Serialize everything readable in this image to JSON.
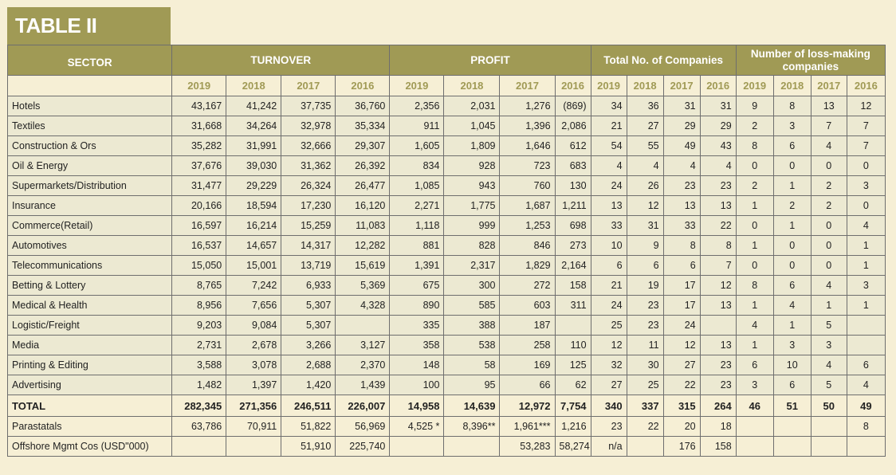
{
  "title": "TABLE II",
  "headers": {
    "sector": "SECTOR",
    "turnover": "TURNOVER",
    "profit": "PROFIT",
    "companies": "Total No. of Companies",
    "loss_making": "Number of loss-making companies"
  },
  "years": [
    "2019",
    "2018",
    "2017",
    "2016",
    "2019",
    "2018",
    "2017",
    "2016",
    "2019",
    "2018",
    "2017",
    "2016",
    "2019",
    "2018",
    "2017",
    "2016"
  ],
  "rows": [
    {
      "sector": "Hotels",
      "turnover": [
        "43,167",
        "41,242",
        "37,735",
        "36,760"
      ],
      "profit": [
        "2,356",
        "2,031",
        "1,276",
        "(869)"
      ],
      "companies": [
        "34",
        "36",
        "31",
        "31"
      ],
      "loss": [
        "9",
        "8",
        "13",
        "12"
      ]
    },
    {
      "sector": "Textiles",
      "turnover": [
        "31,668",
        "34,264",
        "32,978",
        "35,334"
      ],
      "profit": [
        "911",
        "1,045",
        "1,396",
        "2,086"
      ],
      "companies": [
        "21",
        "27",
        "29",
        "29"
      ],
      "loss": [
        "2",
        "3",
        "7",
        "7"
      ]
    },
    {
      "sector": "Construction & Ors",
      "turnover": [
        "35,282",
        "31,991",
        "32,666",
        "29,307"
      ],
      "profit": [
        "1,605",
        "1,809",
        "1,646",
        "612"
      ],
      "companies": [
        "54",
        "55",
        "49",
        "43"
      ],
      "loss": [
        "8",
        "6",
        "4",
        "7"
      ]
    },
    {
      "sector": "Oil & Energy",
      "turnover": [
        "37,676",
        "39,030",
        "31,362",
        "26,392"
      ],
      "profit": [
        "834",
        "928",
        "723",
        "683"
      ],
      "companies": [
        "4",
        "4",
        "4",
        "4"
      ],
      "loss": [
        "0",
        "0",
        "0",
        "0"
      ]
    },
    {
      "sector": "Supermarkets/Distribution",
      "turnover": [
        "31,477",
        "29,229",
        "26,324",
        "26,477"
      ],
      "profit": [
        "1,085",
        "943",
        "760",
        "130"
      ],
      "companies": [
        "24",
        "26",
        "23",
        "23"
      ],
      "loss": [
        "2",
        "1",
        "2",
        "3"
      ]
    },
    {
      "sector": "Insurance",
      "turnover": [
        "20,166",
        "18,594",
        "17,230",
        "16,120"
      ],
      "profit": [
        "2,271",
        "1,775",
        "1,687",
        "1,211"
      ],
      "companies": [
        "13",
        "12",
        "13",
        "13"
      ],
      "loss": [
        "1",
        "2",
        "2",
        "0"
      ]
    },
    {
      "sector": "Commerce(Retail)",
      "turnover": [
        "16,597",
        "16,214",
        "15,259",
        "11,083"
      ],
      "profit": [
        "1,118",
        "999",
        "1,253",
        "698"
      ],
      "companies": [
        "33",
        "31",
        "33",
        "22"
      ],
      "loss": [
        "0",
        "1",
        "0",
        "4"
      ]
    },
    {
      "sector": "Automotives",
      "turnover": [
        "16,537",
        "14,657",
        "14,317",
        "12,282"
      ],
      "profit": [
        "881",
        "828",
        "846",
        "273"
      ],
      "companies": [
        "10",
        "9",
        "8",
        "8"
      ],
      "loss": [
        "1",
        "0",
        "0",
        "1"
      ]
    },
    {
      "sector": "Telecommunications",
      "turnover": [
        "15,050",
        "15,001",
        "13,719",
        "15,619"
      ],
      "profit": [
        "1,391",
        "2,317",
        "1,829",
        "2,164"
      ],
      "companies": [
        "6",
        "6",
        "6",
        "7"
      ],
      "loss": [
        "0",
        "0",
        "0",
        "1"
      ]
    },
    {
      "sector": "Betting & Lottery",
      "turnover": [
        "8,765",
        "7,242",
        "6,933",
        "5,369"
      ],
      "profit": [
        "675",
        "300",
        "272",
        "158"
      ],
      "companies": [
        "21",
        "19",
        "17",
        "12"
      ],
      "loss": [
        "8",
        "6",
        "4",
        "3"
      ]
    },
    {
      "sector": "Medical & Health",
      "turnover": [
        "8,956",
        "7,656",
        "5,307",
        "4,328"
      ],
      "profit": [
        "890",
        "585",
        "603",
        "311"
      ],
      "companies": [
        "24",
        "23",
        "17",
        "13"
      ],
      "loss": [
        "1",
        "4",
        "1",
        "1"
      ]
    },
    {
      "sector": "Logistic/Freight",
      "turnover": [
        "9,203",
        "9,084",
        "5,307",
        ""
      ],
      "profit": [
        "335",
        "388",
        "187",
        ""
      ],
      "companies": [
        "25",
        "23",
        "24",
        ""
      ],
      "loss": [
        "4",
        "1",
        "5",
        ""
      ]
    },
    {
      "sector": "Media",
      "turnover": [
        "2,731",
        "2,678",
        "3,266",
        "3,127"
      ],
      "profit": [
        "358",
        "538",
        "258",
        "110"
      ],
      "companies": [
        "12",
        "11",
        "12",
        "13"
      ],
      "loss": [
        "1",
        "3",
        "3",
        ""
      ]
    },
    {
      "sector": "Printing & Editing",
      "turnover": [
        "3,588",
        "3,078",
        "2,688",
        "2,370"
      ],
      "profit": [
        "148",
        "58",
        "169",
        "125"
      ],
      "companies": [
        "32",
        "30",
        "27",
        "23"
      ],
      "loss": [
        "6",
        "10",
        "4",
        "6"
      ]
    },
    {
      "sector": "Advertising",
      "turnover": [
        "1,482",
        "1,397",
        "1,420",
        "1,439"
      ],
      "profit": [
        "100",
        "95",
        "66",
        "62"
      ],
      "companies": [
        "27",
        "25",
        "22",
        "23"
      ],
      "loss": [
        "3",
        "6",
        "5",
        "4"
      ]
    }
  ],
  "total": {
    "sector": "TOTAL",
    "turnover": [
      "282,345",
      "271,356",
      "246,511",
      "226,007"
    ],
    "profit": [
      "14,958",
      "14,639",
      "12,972",
      "7,754"
    ],
    "companies": [
      "340",
      "337",
      "315",
      "264"
    ],
    "loss": [
      "46",
      "51",
      "50",
      "49"
    ]
  },
  "extra_rows": [
    {
      "sector": "Parastatals",
      "turnover": [
        "63,786",
        "70,911",
        "51,822",
        "56,969"
      ],
      "profit": [
        "4,525 *",
        "8,396**",
        "1,961***",
        "1,216"
      ],
      "companies": [
        "23",
        "22",
        "20",
        "18"
      ],
      "loss": [
        "",
        "",
        "",
        "8"
      ]
    },
    {
      "sector": "Offshore Mgmt Cos (USD\"000)",
      "turnover": [
        "",
        "",
        "51,910",
        "225,740"
      ],
      "profit": [
        "",
        "",
        "53,283",
        "58,274"
      ],
      "companies": [
        "n/a",
        "",
        "176",
        "158"
      ],
      "loss": [
        "",
        "",
        "",
        ""
      ]
    }
  ]
}
